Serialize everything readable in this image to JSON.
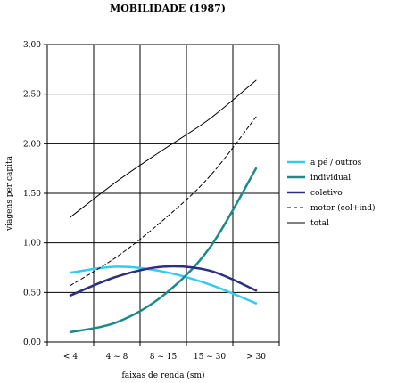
{
  "chart_data": {
    "type": "line",
    "title": "MOBILIDADE (1987)",
    "xlabel": "faixas de renda (sm)",
    "ylabel": "viagens per capita",
    "categories": [
      "< 4",
      "4 ~ 8",
      "8 ~ 15",
      "15 ~ 30",
      "> 30"
    ],
    "ylim": [
      0,
      3
    ],
    "yticks": [
      "0,00",
      "0,50",
      "1,00",
      "1,50",
      "2,00",
      "2,50",
      "3,00"
    ],
    "grid": true,
    "legend_position": "right",
    "series": [
      {
        "name": "a pé / outros",
        "color": "#33ccee",
        "style": "thick",
        "values": [
          0.7,
          0.76,
          0.71,
          0.58,
          0.39
        ]
      },
      {
        "name": "individual",
        "color": "#1a8a8a",
        "style": "thick",
        "values": [
          0.1,
          0.2,
          0.47,
          0.95,
          1.75
        ]
      },
      {
        "name": "coletivo",
        "color": "#2e2e80",
        "style": "thick",
        "values": [
          0.47,
          0.66,
          0.76,
          0.72,
          0.52
        ]
      },
      {
        "name": "motor (col+ind)",
        "color": "#000000",
        "style": "dashed",
        "values": [
          0.57,
          0.86,
          1.23,
          1.67,
          2.27
        ]
      },
      {
        "name": "total",
        "color": "#000000",
        "style": "thin",
        "values": [
          1.26,
          1.62,
          1.94,
          2.25,
          2.64
        ]
      }
    ]
  }
}
